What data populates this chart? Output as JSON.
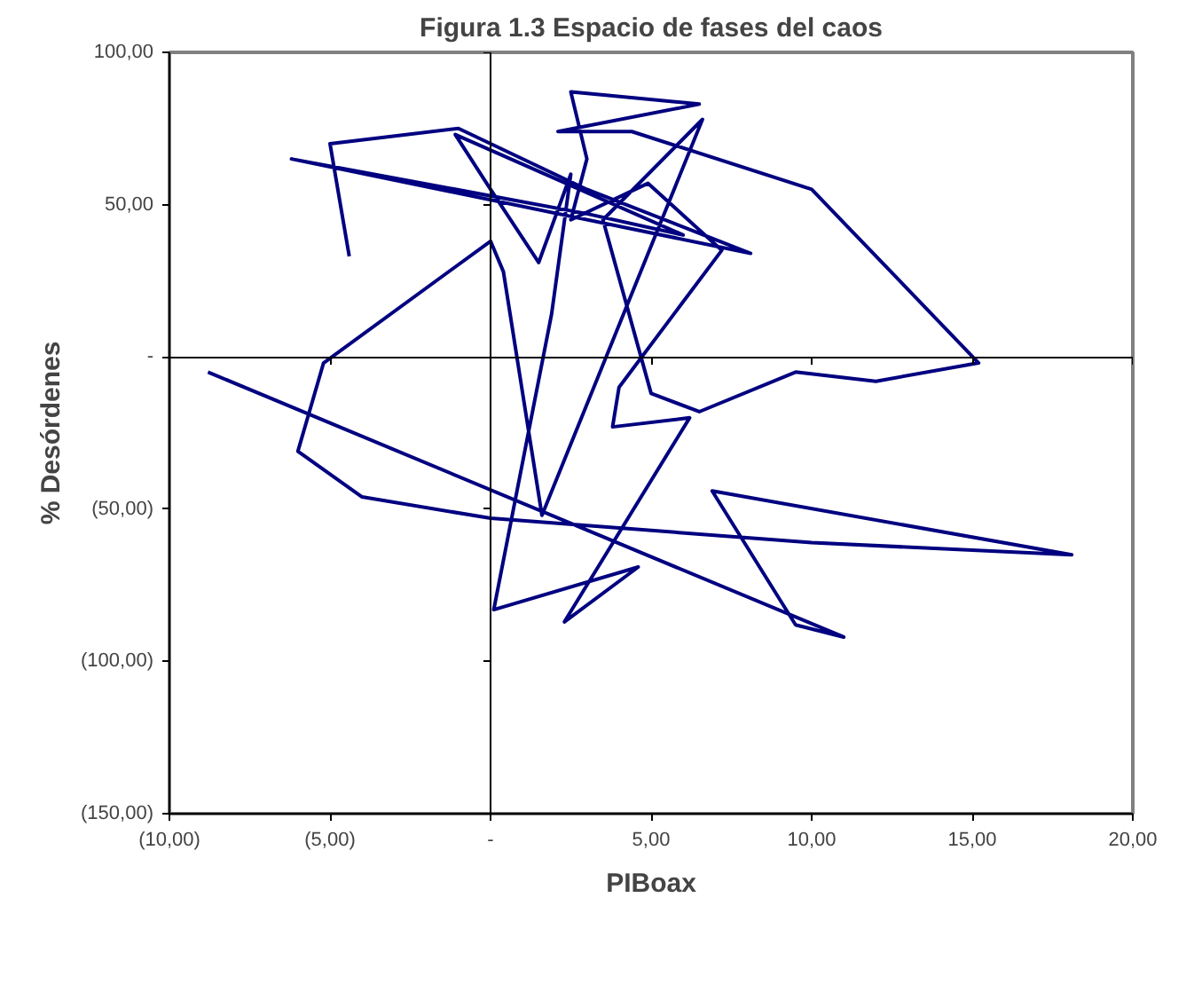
{
  "chart_data": {
    "type": "line",
    "title": "Figura 1.3 Espacio de fases del caos",
    "xlabel": "PIBoax",
    "ylabel": "% Desórdenes",
    "xlim": [
      -10,
      20
    ],
    "ylim": [
      -150,
      100
    ],
    "xticks": [
      {
        "value": -10,
        "label": "(10,00)"
      },
      {
        "value": -5,
        "label": "(5,00)"
      },
      {
        "value": 0,
        "label": "-"
      },
      {
        "value": 5,
        "label": "5,00"
      },
      {
        "value": 10,
        "label": "10,00"
      },
      {
        "value": 15,
        "label": "15,00"
      },
      {
        "value": 20,
        "label": "20,00"
      }
    ],
    "yticks": [
      {
        "value": 100,
        "label": "100,00"
      },
      {
        "value": 50,
        "label": "50,00"
      },
      {
        "value": 0,
        "label": "-"
      },
      {
        "value": -50,
        "label": "(50,00)"
      },
      {
        "value": -100,
        "label": "(100,00)"
      },
      {
        "value": -150,
        "label": "(150,00)"
      }
    ],
    "marker": "none",
    "line_style": "solid",
    "series": [
      {
        "color": "#000080",
        "x": [
          -4.4,
          -5,
          -1,
          3,
          8.1,
          -6.2,
          3,
          6,
          -1.1,
          0,
          1.5,
          2.5,
          1.9,
          0.1,
          4.6,
          2.3,
          6.2,
          3.8,
          4,
          7.2,
          4.9,
          2.5,
          3,
          2.5,
          6.5,
          2.1,
          4.4,
          10,
          15.2,
          12,
          9.5,
          6.5,
          5,
          3.5,
          6.6,
          1.6,
          0.4,
          0,
          -5.2,
          -6,
          -4,
          0,
          10,
          18.1,
          6.9,
          9.5,
          11,
          -8.8
        ],
        "values": [
          33,
          70,
          75,
          55,
          34,
          65,
          47,
          40,
          73,
          55,
          31,
          60,
          14,
          -83,
          -69,
          -87,
          -20,
          -23,
          -10,
          35,
          57,
          45,
          65,
          87,
          83,
          74,
          74,
          55,
          -2,
          -8,
          -5,
          -18,
          -12,
          45,
          78,
          -52,
          28,
          38,
          -2,
          -31,
          -46,
          -53,
          -61,
          -65,
          -44,
          -88,
          -92,
          -5
        ]
      }
    ]
  }
}
